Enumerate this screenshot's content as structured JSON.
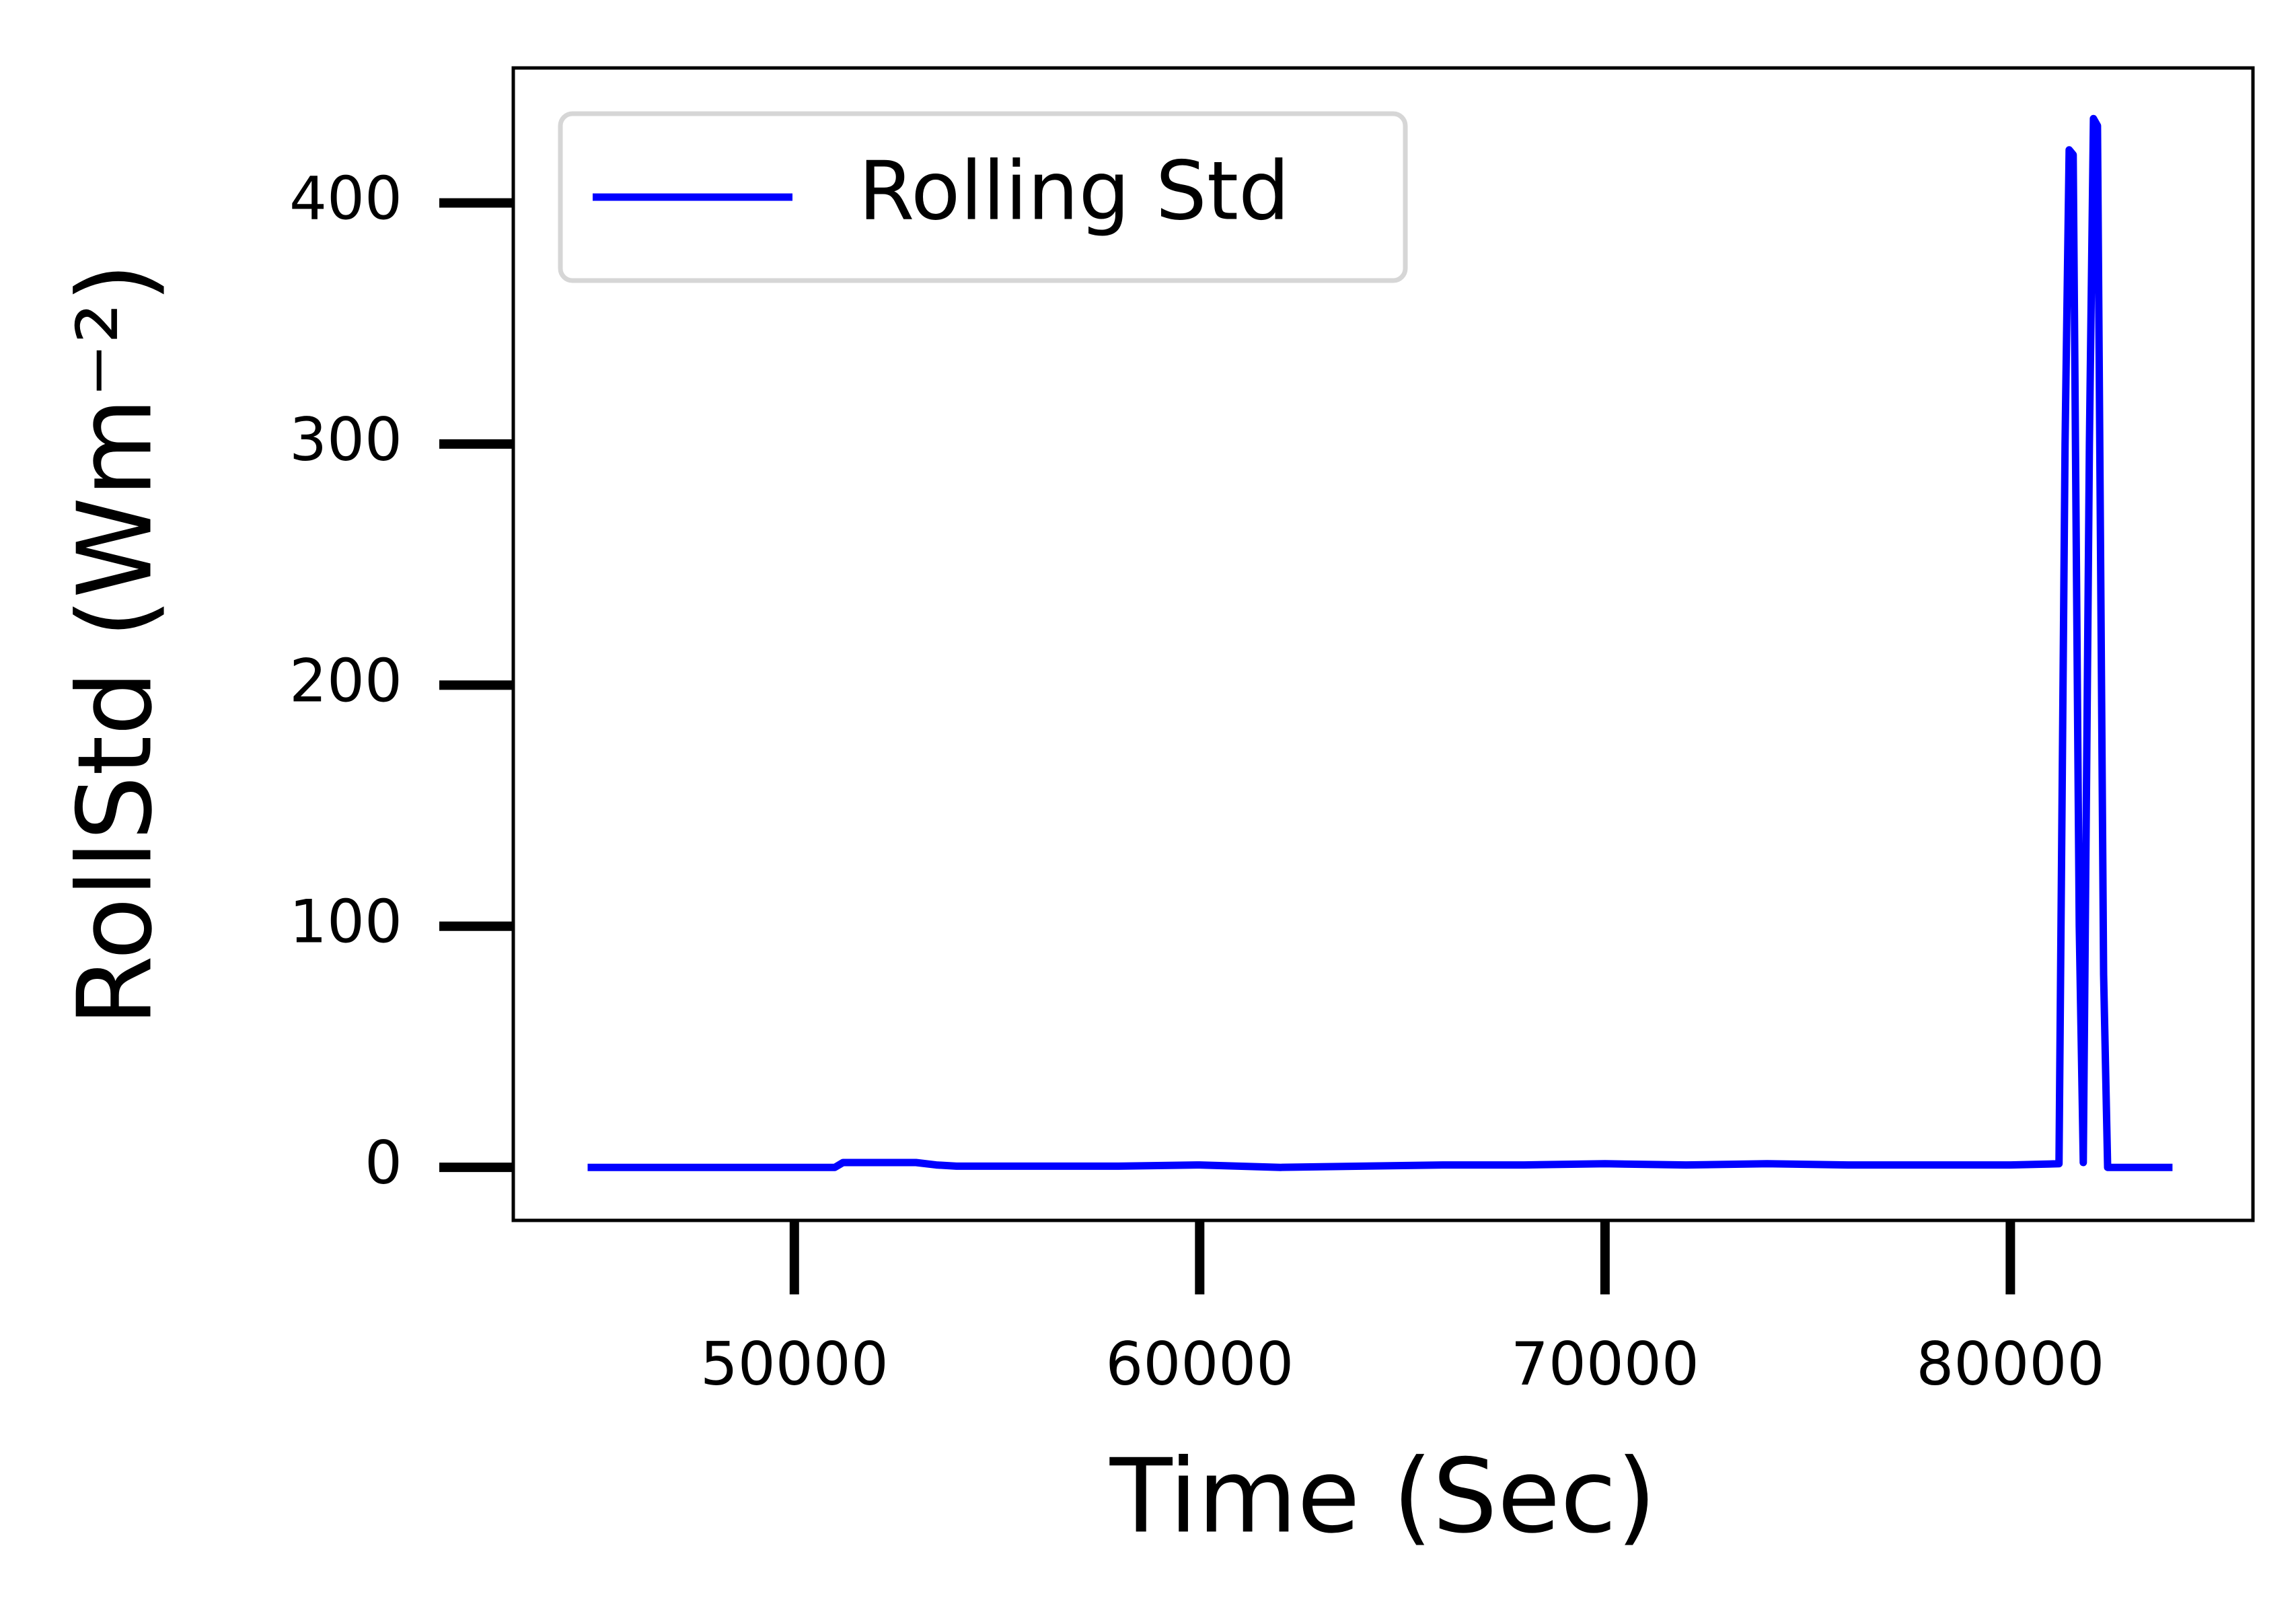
{
  "chart_data": {
    "type": "line",
    "x_label": "Time (Sec)",
    "y_label": "RollStd (Wm⁻²)",
    "xlim": [
      43066,
      85985
    ],
    "ylim": [
      -22,
      456
    ],
    "xticks": [
      50000,
      60000,
      70000,
      80000
    ],
    "yticks": [
      0,
      100,
      200,
      300,
      400
    ],
    "grid": false,
    "legend_position": "upper left",
    "x": [
      44900,
      51000,
      51200,
      53000,
      53500,
      54000,
      56000,
      58000,
      60000,
      62000,
      64000,
      66000,
      68000,
      70000,
      72000,
      74000,
      76000,
      78000,
      80000,
      81200,
      81350,
      81450,
      81550,
      81700,
      81800,
      81950,
      82050,
      82150,
      82300,
      82400,
      84000
    ],
    "series": [
      {
        "name": "Rolling Std",
        "color": "#0000ff",
        "values": [
          0,
          0,
          2,
          2,
          1,
          0.5,
          0.5,
          0.5,
          1,
          0,
          0.5,
          1,
          1,
          1.5,
          1,
          1.5,
          1,
          1,
          1,
          1.5,
          300,
          422,
          420,
          100,
          2,
          300,
          435,
          432,
          80,
          0,
          0
        ]
      }
    ]
  }
}
